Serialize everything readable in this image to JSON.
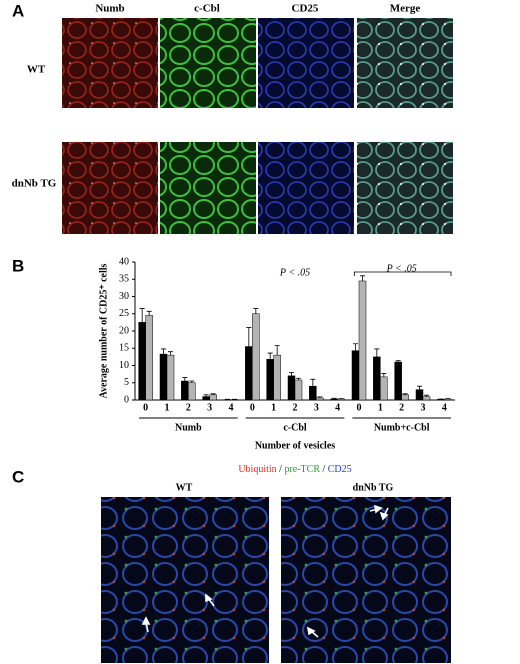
{
  "panel_labels": [
    "A",
    "B",
    "C"
  ],
  "panel_a": {
    "columns": [
      "Numb",
      "c-Cbl",
      "CD25",
      "Merge"
    ],
    "rows": [
      "WT",
      "dnNb TG"
    ]
  },
  "chart_data": {
    "type": "bar",
    "ylabel": "Average number of CD25⁺ cells",
    "xlabel": "Number of vesicles",
    "categories": [
      "0",
      "1",
      "2",
      "3",
      "4",
      "0",
      "1",
      "2",
      "3",
      "4",
      "0",
      "1",
      "2",
      "3",
      "4"
    ],
    "groups": [
      "Numb",
      "c-Cbl",
      "Numb+c-Cbl"
    ],
    "series": [
      {
        "color": "#000000",
        "values": [
          22.5,
          13.3,
          5.5,
          1,
          0.1,
          15.5,
          11.8,
          7,
          4,
          0.3,
          14.3,
          12.5,
          11,
          3,
          0.2
        ],
        "errors": [
          4,
          1.5,
          1,
          0.5,
          0.1,
          5.5,
          1.8,
          1,
          2,
          0.2,
          2,
          2.3,
          0.4,
          1,
          0.1
        ]
      },
      {
        "color": "#b4b4b4",
        "values": [
          24.5,
          13,
          5,
          1.5,
          0.1,
          25,
          13,
          5.8,
          0.6,
          0.3,
          34.5,
          6.7,
          1.5,
          1,
          0.3
        ],
        "errors": [
          1.2,
          1,
          0.5,
          0.3,
          0.1,
          1.5,
          2.8,
          0.5,
          0.3,
          0.1,
          1.5,
          1,
          0.3,
          0.4,
          0.1
        ]
      }
    ],
    "annotations": [
      "P < .05",
      "P < .05"
    ],
    "ylim": [
      0,
      40
    ],
    "yticks": [
      0,
      5,
      10,
      15,
      20,
      25,
      30,
      35,
      40
    ]
  },
  "panel_c": {
    "stains": [
      {
        "text": "Ubiquitin",
        "color": "#e03020"
      },
      {
        "text": "pre-TCR",
        "color": "#2a9a2a"
      },
      {
        "text": "CD25",
        "color": "#2040c0"
      }
    ],
    "separator": "/",
    "titles": [
      "WT",
      "dnNb TG"
    ]
  }
}
